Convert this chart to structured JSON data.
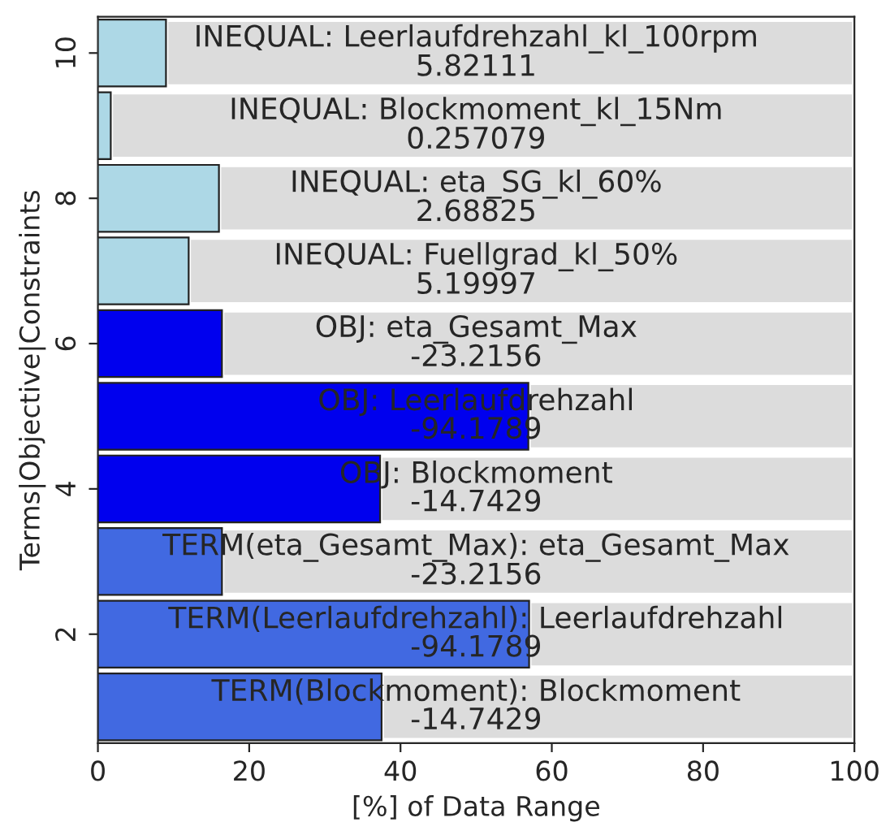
{
  "chart_data": {
    "type": "bar",
    "orientation": "horizontal",
    "stacked": true,
    "xlabel": "[%] of Data Range",
    "ylabel": "Terms|Objective|Constraints",
    "x": [
      1,
      2,
      3,
      4,
      5,
      6,
      7,
      8,
      9,
      10
    ],
    "series": [
      {
        "colors": [
          "#4169e1",
          "#4169e1",
          "#4169e1",
          "#0000ee",
          "#0000ee",
          "#0000ee",
          "#add8e6",
          "#add8e6",
          "#add8e6",
          "#add8e6"
        ],
        "values": [
          37.5,
          57,
          16.4,
          37.3,
          56.9,
          16.4,
          12,
          16,
          1.7,
          9
        ]
      },
      {
        "color": "#dcdcdc",
        "values": [
          62.5,
          43,
          83.6,
          62.7,
          43.1,
          83.6,
          88,
          84,
          98.3,
          91
        ]
      }
    ],
    "xlim": [
      0,
      100
    ],
    "xticks": [
      0,
      20,
      40,
      60,
      80,
      100
    ],
    "ylim": [
      0.5,
      10.5
    ],
    "yticks": [
      2,
      4,
      6,
      8,
      10
    ],
    "annotations": [
      "TERM(Blockmoment): Blockmoment\n-14.7429",
      "TERM(Leerlaufdrehzahl): Leerlaufdrehzahl\n-94.1789",
      "TERM(eta_Gesamt_Max): eta_Gesamt_Max\n-23.2156",
      "OBJ: Blockmoment\n-14.7429",
      "OBJ: Leerlaufdrehzahl\n-94.1789",
      "OBJ: eta_Gesamt_Max\n-23.2156",
      "INEQUAL: Fuellgrad_kl_50%\n5.19997",
      "INEQUAL: eta_SG_kl_60%\n2.68825",
      "INEQUAL: Blockmoment_kl_15Nm\n0.257079",
      "INEQUAL: Leerlaufdrehzahl_kl_100rpm\n5.82111"
    ],
    "grid": false,
    "legend": false
  }
}
